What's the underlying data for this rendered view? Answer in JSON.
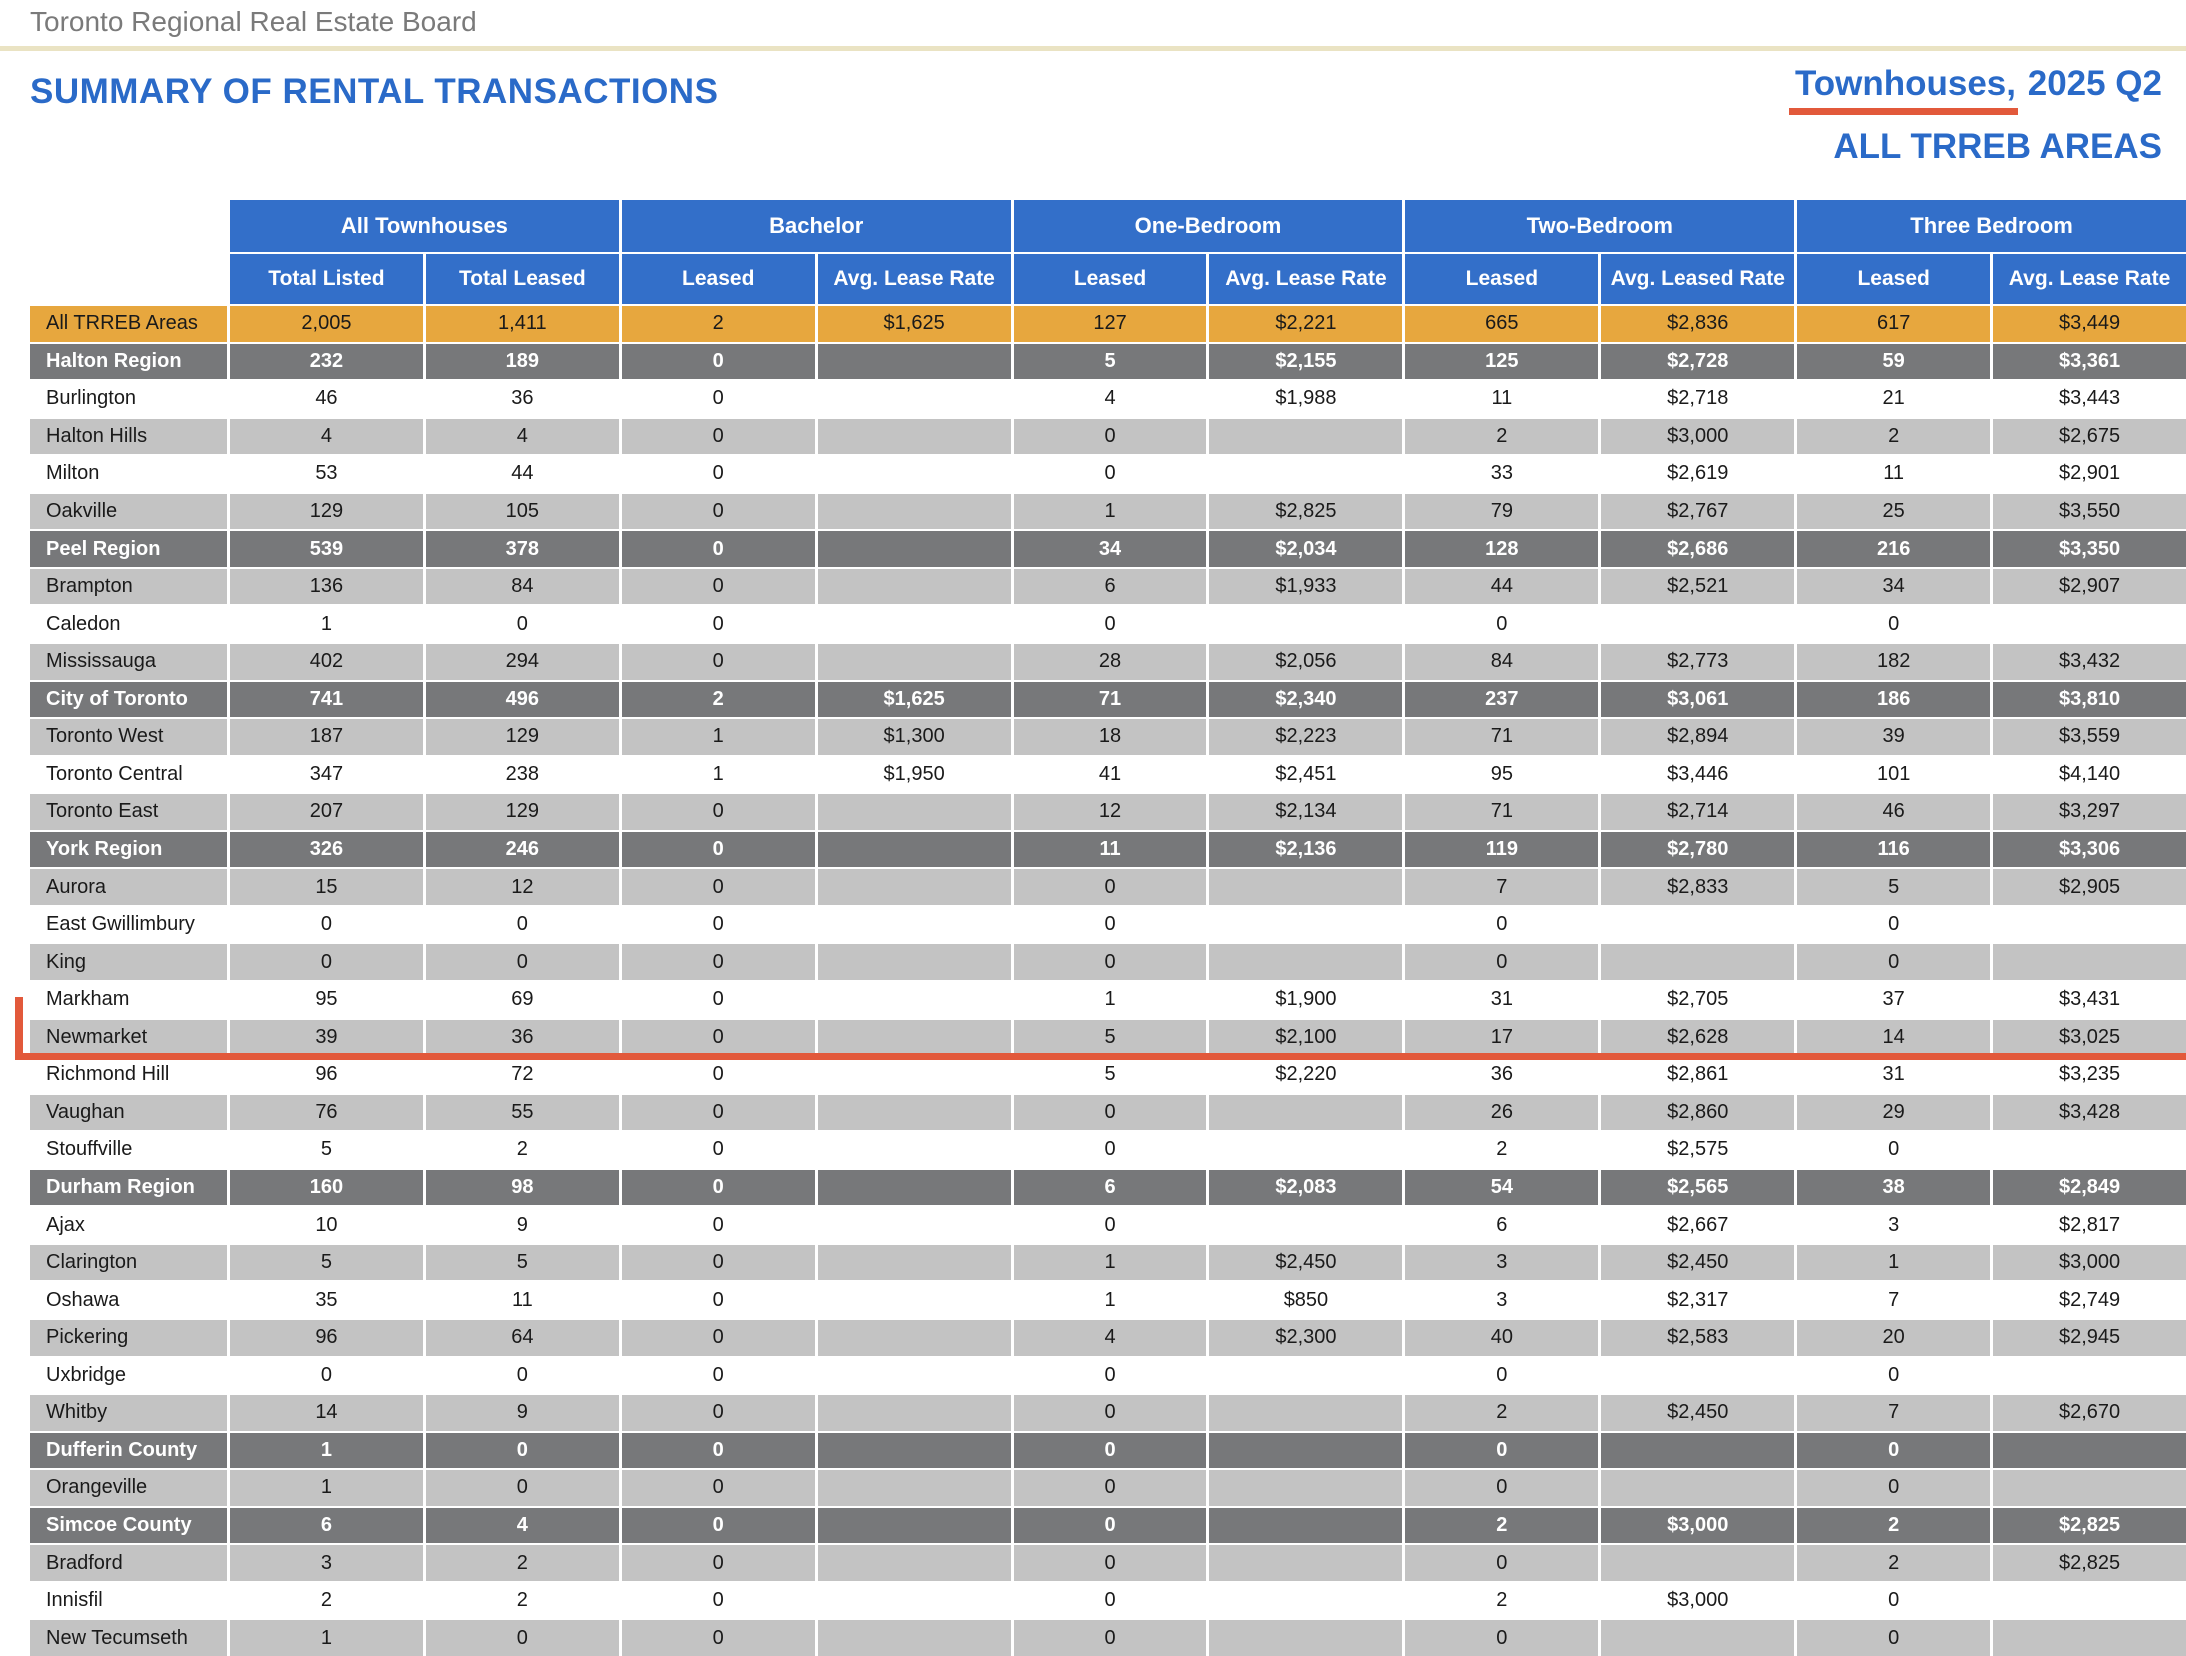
{
  "header": {
    "board_name": "Toronto Regional Real Estate Board",
    "title": "SUMMARY OF RENTAL TRANSACTIONS",
    "subtitle_underlined": "Townhouses,",
    "subtitle_rest": " 2025 Q2",
    "subtitle_line2": "ALL TRREB AREAS"
  },
  "colors": {
    "header_blue": "#336FC9",
    "title_blue": "#2A6AC8",
    "gold_row": "#E7A73E",
    "region_row": "#77787A",
    "alt_row": "#C3C3C3",
    "white_row": "#FFFFFF",
    "highlight_red": "#E2593B",
    "divider_tan": "#EAE3C3",
    "board_gray": "#7A7A7A"
  },
  "table": {
    "column_groups": [
      {
        "label": "All Townhouses",
        "sub": [
          "Total Listed",
          "Total Leased"
        ]
      },
      {
        "label": "Bachelor",
        "sub": [
          "Leased",
          "Avg. Lease Rate"
        ]
      },
      {
        "label": "One-Bedroom",
        "sub": [
          "Leased",
          "Avg. Lease Rate"
        ]
      },
      {
        "label": "Two-Bedroom",
        "sub": [
          "Leased",
          "Avg. Leased Rate"
        ]
      },
      {
        "label": "Three Bedroom",
        "sub": [
          "Leased",
          "Avg. Lease Rate"
        ]
      }
    ],
    "rows": [
      {
        "name": "All TRREB Areas",
        "shade": "gold",
        "highlighted": false,
        "values": [
          "2,005",
          "1,411",
          "2",
          "$1,625",
          "127",
          "$2,221",
          "665",
          "$2,836",
          "617",
          "$3,449"
        ]
      },
      {
        "name": "Halton Region",
        "shade": "region",
        "highlighted": false,
        "values": [
          "232",
          "189",
          "0",
          "",
          "5",
          "$2,155",
          "125",
          "$2,728",
          "59",
          "$3,361"
        ]
      },
      {
        "name": "Burlington",
        "shade": "white",
        "highlighted": false,
        "values": [
          "46",
          "36",
          "0",
          "",
          "4",
          "$1,988",
          "11",
          "$2,718",
          "21",
          "$3,443"
        ]
      },
      {
        "name": "Halton Hills",
        "shade": "gray",
        "highlighted": false,
        "values": [
          "4",
          "4",
          "0",
          "",
          "0",
          "",
          "2",
          "$3,000",
          "2",
          "$2,675"
        ]
      },
      {
        "name": "Milton",
        "shade": "white",
        "highlighted": false,
        "values": [
          "53",
          "44",
          "0",
          "",
          "0",
          "",
          "33",
          "$2,619",
          "11",
          "$2,901"
        ]
      },
      {
        "name": "Oakville",
        "shade": "gray",
        "highlighted": false,
        "values": [
          "129",
          "105",
          "0",
          "",
          "1",
          "$2,825",
          "79",
          "$2,767",
          "25",
          "$3,550"
        ]
      },
      {
        "name": "Peel Region",
        "shade": "region",
        "highlighted": false,
        "values": [
          "539",
          "378",
          "0",
          "",
          "34",
          "$2,034",
          "128",
          "$2,686",
          "216",
          "$3,350"
        ]
      },
      {
        "name": "Brampton",
        "shade": "gray",
        "highlighted": false,
        "values": [
          "136",
          "84",
          "0",
          "",
          "6",
          "$1,933",
          "44",
          "$2,521",
          "34",
          "$2,907"
        ]
      },
      {
        "name": "Caledon",
        "shade": "white",
        "highlighted": false,
        "values": [
          "1",
          "0",
          "0",
          "",
          "0",
          "",
          "0",
          "",
          "0",
          ""
        ]
      },
      {
        "name": "Mississauga",
        "shade": "gray",
        "highlighted": false,
        "values": [
          "402",
          "294",
          "0",
          "",
          "28",
          "$2,056",
          "84",
          "$2,773",
          "182",
          "$3,432"
        ]
      },
      {
        "name": "City of Toronto",
        "shade": "region",
        "highlighted": false,
        "values": [
          "741",
          "496",
          "2",
          "$1,625",
          "71",
          "$2,340",
          "237",
          "$3,061",
          "186",
          "$3,810"
        ]
      },
      {
        "name": "Toronto West",
        "shade": "gray",
        "highlighted": false,
        "values": [
          "187",
          "129",
          "1",
          "$1,300",
          "18",
          "$2,223",
          "71",
          "$2,894",
          "39",
          "$3,559"
        ]
      },
      {
        "name": "Toronto Central",
        "shade": "white",
        "highlighted": false,
        "values": [
          "347",
          "238",
          "1",
          "$1,950",
          "41",
          "$2,451",
          "95",
          "$3,446",
          "101",
          "$4,140"
        ]
      },
      {
        "name": "Toronto East",
        "shade": "gray",
        "highlighted": false,
        "values": [
          "207",
          "129",
          "0",
          "",
          "12",
          "$2,134",
          "71",
          "$2,714",
          "46",
          "$3,297"
        ]
      },
      {
        "name": "York Region",
        "shade": "region",
        "highlighted": false,
        "values": [
          "326",
          "246",
          "0",
          "",
          "11",
          "$2,136",
          "119",
          "$2,780",
          "116",
          "$3,306"
        ]
      },
      {
        "name": "Aurora",
        "shade": "gray",
        "highlighted": false,
        "values": [
          "15",
          "12",
          "0",
          "",
          "0",
          "",
          "7",
          "$2,833",
          "5",
          "$2,905"
        ]
      },
      {
        "name": "East Gwillimbury",
        "shade": "white",
        "highlighted": false,
        "values": [
          "0",
          "0",
          "0",
          "",
          "0",
          "",
          "0",
          "",
          "0",
          ""
        ]
      },
      {
        "name": "King",
        "shade": "gray",
        "highlighted": false,
        "values": [
          "0",
          "0",
          "0",
          "",
          "0",
          "",
          "0",
          "",
          "0",
          ""
        ]
      },
      {
        "name": "Markham",
        "shade": "white",
        "highlighted": false,
        "values": [
          "95",
          "69",
          "0",
          "",
          "1",
          "$1,900",
          "31",
          "$2,705",
          "37",
          "$3,431"
        ]
      },
      {
        "name": "Newmarket",
        "shade": "gray",
        "highlighted": true,
        "values": [
          "39",
          "36",
          "0",
          "",
          "5",
          "$2,100",
          "17",
          "$2,628",
          "14",
          "$3,025"
        ]
      },
      {
        "name": "Richmond Hill",
        "shade": "white",
        "highlighted": false,
        "values": [
          "96",
          "72",
          "0",
          "",
          "5",
          "$2,220",
          "36",
          "$2,861",
          "31",
          "$3,235"
        ]
      },
      {
        "name": "Vaughan",
        "shade": "gray",
        "highlighted": false,
        "values": [
          "76",
          "55",
          "0",
          "",
          "0",
          "",
          "26",
          "$2,860",
          "29",
          "$3,428"
        ]
      },
      {
        "name": "Stouffville",
        "shade": "white",
        "highlighted": false,
        "values": [
          "5",
          "2",
          "0",
          "",
          "0",
          "",
          "2",
          "$2,575",
          "0",
          ""
        ]
      },
      {
        "name": "Durham Region",
        "shade": "region",
        "highlighted": false,
        "values": [
          "160",
          "98",
          "0",
          "",
          "6",
          "$2,083",
          "54",
          "$2,565",
          "38",
          "$2,849"
        ]
      },
      {
        "name": "Ajax",
        "shade": "white",
        "highlighted": false,
        "values": [
          "10",
          "9",
          "0",
          "",
          "0",
          "",
          "6",
          "$2,667",
          "3",
          "$2,817"
        ]
      },
      {
        "name": "Clarington",
        "shade": "gray",
        "highlighted": false,
        "values": [
          "5",
          "5",
          "0",
          "",
          "1",
          "$2,450",
          "3",
          "$2,450",
          "1",
          "$3,000"
        ]
      },
      {
        "name": "Oshawa",
        "shade": "white",
        "highlighted": false,
        "values": [
          "35",
          "11",
          "0",
          "",
          "1",
          "$850",
          "3",
          "$2,317",
          "7",
          "$2,749"
        ]
      },
      {
        "name": "Pickering",
        "shade": "gray",
        "highlighted": false,
        "values": [
          "96",
          "64",
          "0",
          "",
          "4",
          "$2,300",
          "40",
          "$2,583",
          "20",
          "$2,945"
        ]
      },
      {
        "name": "Uxbridge",
        "shade": "white",
        "highlighted": false,
        "values": [
          "0",
          "0",
          "0",
          "",
          "0",
          "",
          "0",
          "",
          "0",
          ""
        ]
      },
      {
        "name": "Whitby",
        "shade": "gray",
        "highlighted": false,
        "values": [
          "14",
          "9",
          "0",
          "",
          "0",
          "",
          "2",
          "$2,450",
          "7",
          "$2,670"
        ]
      },
      {
        "name": "Dufferin County",
        "shade": "region",
        "highlighted": false,
        "values": [
          "1",
          "0",
          "0",
          "",
          "0",
          "",
          "0",
          "",
          "0",
          ""
        ]
      },
      {
        "name": "Orangeville",
        "shade": "gray",
        "highlighted": false,
        "values": [
          "1",
          "0",
          "0",
          "",
          "0",
          "",
          "0",
          "",
          "0",
          ""
        ]
      },
      {
        "name": "Simcoe County",
        "shade": "region",
        "highlighted": false,
        "values": [
          "6",
          "4",
          "0",
          "",
          "0",
          "",
          "2",
          "$3,000",
          "2",
          "$2,825"
        ]
      },
      {
        "name": "Bradford",
        "shade": "gray",
        "highlighted": false,
        "values": [
          "3",
          "2",
          "0",
          "",
          "0",
          "",
          "0",
          "",
          "2",
          "$2,825"
        ]
      },
      {
        "name": "Innisfil",
        "shade": "white",
        "highlighted": false,
        "values": [
          "2",
          "2",
          "0",
          "",
          "0",
          "",
          "2",
          "$3,000",
          "0",
          ""
        ]
      },
      {
        "name": "New Tecumseth",
        "shade": "gray",
        "highlighted": false,
        "values": [
          "1",
          "0",
          "0",
          "",
          "0",
          "",
          "0",
          "",
          "0",
          ""
        ]
      }
    ]
  }
}
